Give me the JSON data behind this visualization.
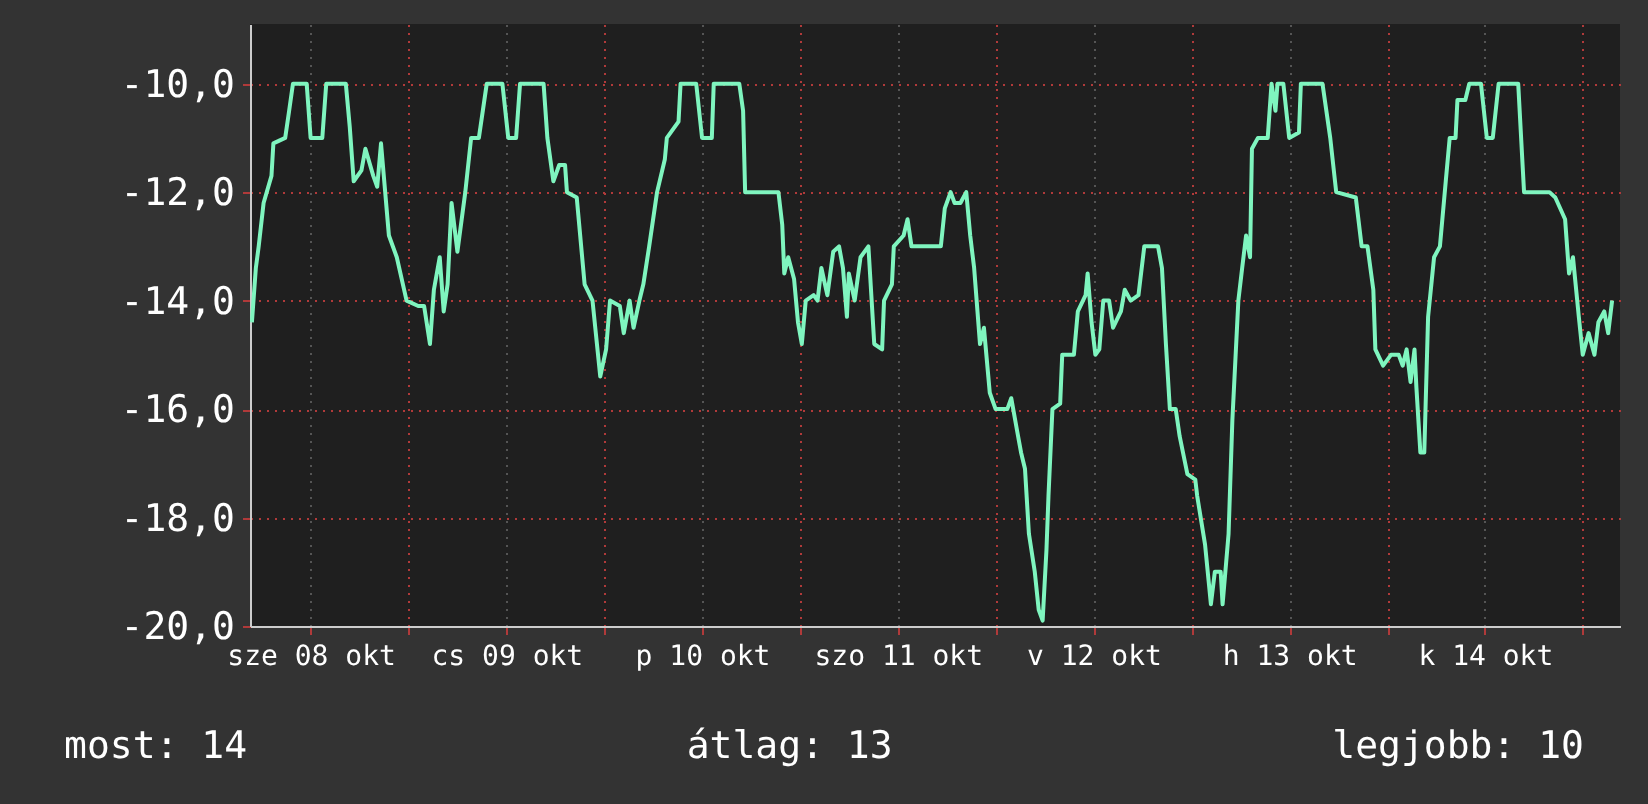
{
  "chart_data": {
    "type": "line",
    "x": [
      "--10-08T04:48",
      "--10-08T05:17",
      "--10-08T05:38",
      "--10-08T06:14",
      "--10-08T07:12",
      "--10-08T07:26",
      "--10-08T08:53",
      "--10-08T09:22",
      "--10-08T09:50",
      "--10-08T11:31",
      "--10-08T12:00",
      "--10-08T13:26",
      "--10-08T13:55",
      "--10-08T16:19",
      "--10-08T16:48",
      "--10-08T17:17",
      "--10-08T18:14",
      "--10-08T18:43",
      "--10-08T19:41",
      "--10-08T20:10",
      "--10-08T20:38",
      "--10-08T21:36",
      "--10-08T22:34",
      "--10-08T23:46",
      "--10-09T01:12",
      "--10-09T01:55",
      "--10-09T02:38",
      "--10-09T03:07",
      "--10-09T03:50",
      "--10-09T04:19",
      "--10-09T04:48",
      "--10-09T05:17",
      "--10-09T06:00",
      "--10-09T06:58",
      "--10-09T07:41",
      "--10-09T08:38",
      "--10-09T09:36",
      "--10-09T11:31",
      "--10-09T12:14",
      "--10-09T13:12",
      "--10-09T13:41",
      "--10-09T16:34",
      "--10-09T17:02",
      "--10-09T17:46",
      "--10-09T18:29",
      "--10-09T19:12",
      "--10-09T19:26",
      "--10-09T20:38",
      "--10-09T21:36",
      "--10-09T22:34",
      "--10-09T23:31",
      "--10-10T00:14",
      "--10-10T00:43",
      "--10-10T01:55",
      "--10-10T02:24",
      "--10-10T03:07",
      "--10-10T03:36",
      "--10-10T04:19",
      "--10-10T04:48",
      "--10-10T05:31",
      "--10-10T06:29",
      "--10-10T07:26",
      "--10-10T07:41",
      "--10-10T09:07",
      "--10-10T09:22",
      "--10-10T11:17",
      "--10-10T12:00",
      "--10-10T13:12",
      "--10-10T13:26",
      "--10-10T16:34",
      "--10-10T17:02",
      "--10-10T17:17",
      "--10-10T21:22",
      "--10-10T21:50",
      "--10-10T22:05",
      "--10-10T22:34",
      "--10-10T23:17",
      "--10-10T23:46",
      "--10-11T00:14",
      "--10-11T00:43",
      "--10-11T01:41",
      "--10-11T02:10",
      "--10-11T02:38",
      "--10-11T03:22",
      "--10-11T04:05",
      "--10-11T04:48",
      "--10-11T05:17",
      "--10-11T05:46",
      "--10-11T06:00",
      "--10-11T06:43",
      "--10-11T07:26",
      "--10-11T08:24",
      "--10-11T09:07",
      "--10-11T10:05",
      "--10-11T10:19",
      "--10-11T11:17",
      "--10-11T11:31",
      "--10-11T12:43",
      "--10-11T13:12",
      "--10-11T13:41",
      "--10-11T17:17",
      "--10-11T17:46",
      "--10-11T18:29",
      "--10-11T18:58",
      "--10-11T19:41",
      "--10-11T20:24",
      "--10-11T20:53",
      "--10-11T21:22",
      "--10-11T22:05",
      "--10-11T22:34",
      "--10-11T23:17",
      "--10-12T00:00",
      "--10-12T01:26",
      "--10-12T01:55",
      "--10-12T02:38",
      "--10-12T03:07",
      "--10-12T03:36",
      "--10-12T04:05",
      "--10-12T04:48",
      "--10-12T05:17",
      "--10-12T05:46",
      "--10-12T06:14",
      "--10-12T06:29",
      "--10-12T06:58",
      "--10-12T07:55",
      "--10-12T08:10",
      "--10-12T09:36",
      "--10-12T10:05",
      "--10-12T11:02",
      "--10-12T11:17",
      "--10-12T11:46",
      "--10-12T12:14",
      "--10-12T12:43",
      "--10-12T13:12",
      "--10-12T13:55",
      "--10-12T14:24",
      "--10-12T15:22",
      "--10-12T15:50",
      "--10-12T16:34",
      "--10-12T17:31",
      "--10-12T18:14",
      "--10-12T19:55",
      "--10-12T20:24",
      "--10-12T20:53",
      "--10-12T21:22",
      "--10-12T22:05",
      "--10-12T22:34",
      "--10-12T23:31",
      "--10-13T00:29",
      "--10-13T00:43",
      "--10-13T01:41",
      "--10-13T02:24",
      "--10-13T02:53",
      "--10-13T03:36",
      "--10-13T03:50",
      "--10-13T04:34",
      "--10-13T05:02",
      "--10-13T05:46",
      "--10-13T06:14",
      "--10-13T06:43",
      "--10-13T07:12",
      "--10-13T07:26",
      "--10-13T08:10",
      "--10-13T09:22",
      "--10-13T09:50",
      "--10-13T10:19",
      "--10-13T10:34",
      "--10-13T11:17",
      "--10-13T12:00",
      "--10-13T13:12",
      "--10-13T13:26",
      "--10-13T16:05",
      "--10-13T17:02",
      "--10-13T17:46",
      "--10-13T20:10",
      "--10-13T20:53",
      "--10-13T21:36",
      "--10-13T22:19",
      "--10-13T22:34",
      "--10-13T23:31",
      "--10-14T00:29",
      "--10-14T01:26",
      "--10-14T01:55",
      "--10-14T02:24",
      "--10-14T02:53",
      "--10-14T03:22",
      "--10-14T03:36",
      "--10-14T04:05",
      "--10-14T04:34",
      "--10-14T05:02",
      "--10-14T05:46",
      "--10-14T06:29",
      "--10-14T07:12",
      "--10-14T07:41",
      "--10-14T08:24",
      "--10-14T08:38",
      "--10-14T09:36",
      "--10-14T10:05",
      "--10-14T11:31",
      "--10-14T12:14",
      "--10-14T12:58",
      "--10-14T13:41",
      "--10-14T16:05",
      "--10-14T16:48",
      "--10-14T18:58",
      "--10-14T19:55",
      "--10-14T20:38",
      "--10-14T21:50",
      "--10-14T22:19",
      "--10-14T22:48",
      "--10-14T23:31",
      "--10-15T00:00",
      "--10-15T00:43",
      "--10-15T01:26",
      "--10-15T01:55",
      "--10-15T02:38",
      "--10-15T03:07",
      "--10-15T03:36"
    ],
    "series": [
      {
        "color": "#7ff5bf",
        "values": [
          -14.4,
          -13.4,
          -13.0,
          -12.2,
          -11.7,
          -11.1,
          -11.0,
          -10.5,
          -10.0,
          -10.0,
          -11.0,
          -11.0,
          -10.0,
          -10.0,
          -10.8,
          -11.8,
          -11.6,
          -11.2,
          -11.7,
          -11.9,
          -11.1,
          -12.8,
          -13.2,
          -14.0,
          -14.1,
          -14.1,
          -14.8,
          -13.8,
          -13.2,
          -14.2,
          -13.7,
          -12.2,
          -13.1,
          -12.0,
          -11.0,
          -11.0,
          -10.0,
          -10.0,
          -11.0,
          -11.0,
          -10.0,
          -10.0,
          -11.0,
          -11.8,
          -11.5,
          -11.5,
          -12.0,
          -12.1,
          -13.7,
          -14.0,
          -15.4,
          -14.9,
          -14.0,
          -14.1,
          -14.6,
          -14.0,
          -14.5,
          -14.0,
          -13.7,
          -13.0,
          -12.0,
          -11.4,
          -11.0,
          -10.7,
          -10.0,
          -10.0,
          -11.0,
          -11.0,
          -10.0,
          -10.0,
          -10.5,
          -12.0,
          -12.0,
          -12.6,
          -13.5,
          -13.2,
          -13.6,
          -14.4,
          -14.8,
          -14.0,
          -13.9,
          -14.0,
          -13.4,
          -13.9,
          -13.1,
          -13.0,
          -13.4,
          -14.3,
          -13.5,
          -14.0,
          -13.2,
          -13.0,
          -14.8,
          -14.9,
          -14.0,
          -13.7,
          -13.0,
          -12.8,
          -12.5,
          -13.0,
          -13.0,
          -12.3,
          -12.0,
          -12.2,
          -12.2,
          -12.0,
          -12.8,
          -13.4,
          -14.8,
          -14.5,
          -15.7,
          -16.0,
          -16.0,
          -15.8,
          -16.4,
          -16.8,
          -17.1,
          -18.3,
          -19.0,
          -19.7,
          -19.9,
          -18.6,
          -17.6,
          -16.0,
          -15.9,
          -15.0,
          -15.0,
          -14.2,
          -13.9,
          -13.5,
          -14.4,
          -15.0,
          -14.9,
          -14.0,
          -14.0,
          -14.5,
          -14.2,
          -13.8,
          -14.0,
          -13.9,
          -13.0,
          -13.0,
          -13.4,
          -14.8,
          -16.0,
          -16.0,
          -16.5,
          -17.2,
          -17.3,
          -17.6,
          -18.5,
          -19.6,
          -19.0,
          -19.0,
          -19.6,
          -18.3,
          -16.2,
          -14.0,
          -13.4,
          -12.8,
          -13.2,
          -11.2,
          -11.0,
          -11.0,
          -10.0,
          -10.5,
          -10.0,
          -10.0,
          -11.0,
          -10.9,
          -10.0,
          -10.0,
          -11.0,
          -12.0,
          -12.1,
          -13.0,
          -13.0,
          -13.8,
          -14.9,
          -15.2,
          -15.0,
          -15.0,
          -15.2,
          -14.9,
          -15.5,
          -14.9,
          -15.6,
          -16.8,
          -16.8,
          -14.3,
          -13.2,
          -13.0,
          -11.8,
          -11.0,
          -11.0,
          -10.3,
          -10.3,
          -10.0,
          -10.0,
          -11.0,
          -11.0,
          -10.0,
          -10.0,
          -12.0,
          -12.0,
          -12.0,
          -12.1,
          -12.5,
          -13.5,
          -13.2,
          -14.3,
          -15.0,
          -14.6,
          -15.0,
          -14.4,
          -14.2,
          -14.6,
          -14.0
        ]
      }
    ],
    "xlim": [
      "--10-08T04:34",
      "--10-15T04:34"
    ],
    "xticks": [
      {
        "value": "--10-08T12:00",
        "label": "sze 08 okt"
      },
      {
        "value": "--10-09T00:00",
        "label": null
      },
      {
        "value": "--10-09T12:00",
        "label": "cs 09 okt"
      },
      {
        "value": "--10-10T00:00",
        "label": null
      },
      {
        "value": "--10-10T12:00",
        "label": "p 10 okt"
      },
      {
        "value": "--10-11T00:00",
        "label": null
      },
      {
        "value": "--10-11T12:00",
        "label": "szo 11 okt"
      },
      {
        "value": "--10-12T00:00",
        "label": null
      },
      {
        "value": "--10-12T12:00",
        "label": "v 12 okt"
      },
      {
        "value": "--10-13T00:00",
        "label": null
      },
      {
        "value": "--10-13T12:00",
        "label": "h 13 okt"
      },
      {
        "value": "--10-14T00:00",
        "label": null
      },
      {
        "value": "--10-14T12:00",
        "label": "k 14 okt"
      },
      {
        "value": "--10-15T00:00",
        "label": null
      }
    ],
    "ylim": [
      -20,
      -8.9
    ],
    "yticks": [
      {
        "value": -20,
        "label": "-20,0"
      },
      {
        "value": -18,
        "label": "-18,0"
      },
      {
        "value": -16,
        "label": "-16,0"
      },
      {
        "value": -14,
        "label": "-14,0"
      },
      {
        "value": -12,
        "label": "-12,0"
      },
      {
        "value": -10,
        "label": "-10,0"
      }
    ],
    "grid": true,
    "annotations": [
      "most: 14",
      "átlag: 13",
      "legjobb: 10"
    ]
  }
}
